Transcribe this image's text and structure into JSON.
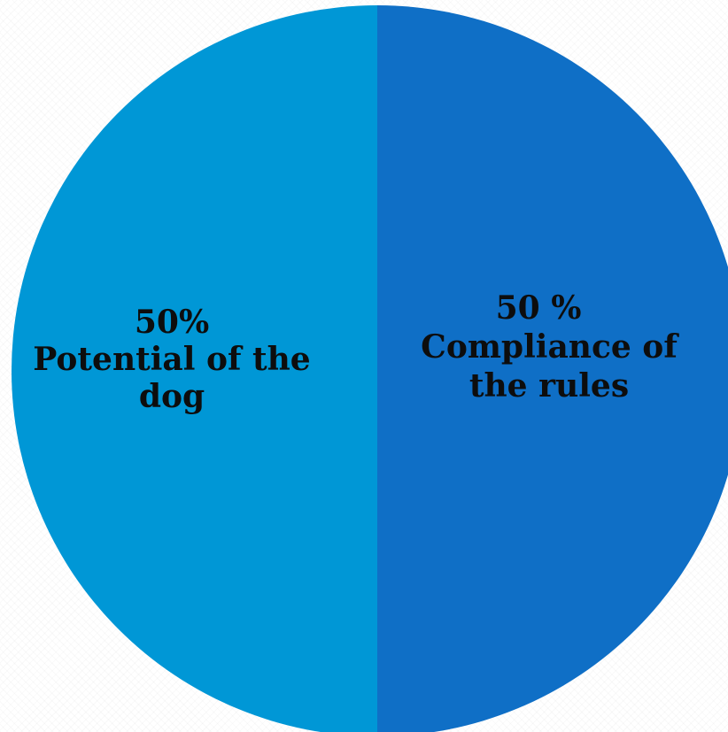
{
  "chart_data": {
    "type": "pie",
    "title": "",
    "slices": [
      {
        "label_lines": [
          "50%",
          "Potential of the",
          "dog"
        ],
        "value": 50,
        "color": "#0097d6"
      },
      {
        "label_lines": [
          "50 %",
          "Compliance of",
          "the rules"
        ],
        "value": 50,
        "color": "#0f6fc6"
      }
    ],
    "legend": "none"
  }
}
